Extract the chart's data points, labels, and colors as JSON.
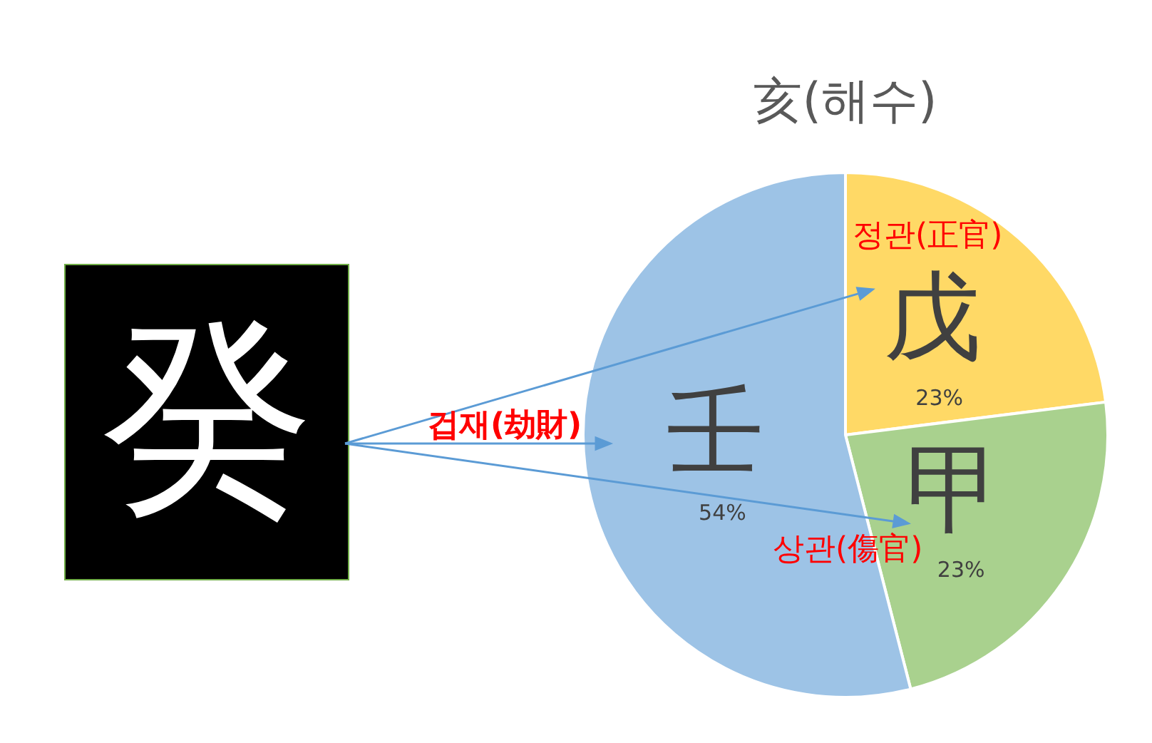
{
  "chart_data": {
    "type": "pie",
    "title": "亥(해수)",
    "categories": [
      "戊",
      "甲",
      "壬"
    ],
    "values": [
      23,
      23,
      54
    ],
    "colors": [
      "#ffd966",
      "#a9d18e",
      "#9dc3e6"
    ],
    "value_labels": [
      "23%",
      "23%",
      "54%"
    ],
    "legend": false,
    "annotations": [
      "癸",
      "정관(正官)",
      "겁재(劫財)",
      "상관(傷官)"
    ]
  }
}
